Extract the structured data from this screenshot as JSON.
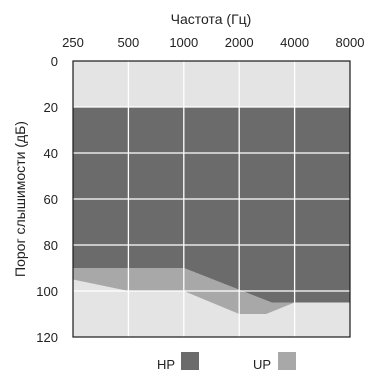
{
  "chart_data": {
    "type": "area",
    "title": "",
    "xlabel": "Частота (Гц)",
    "ylabel": "Порог слышимости (дБ)",
    "x_axis_position": "top",
    "y_inverted": true,
    "x_ticks": [
      "250",
      "500",
      "1000",
      "2000",
      "4000",
      "8000"
    ],
    "y_ticks": [
      "0",
      "20",
      "40",
      "60",
      "80",
      "100",
      "120"
    ],
    "ylim": [
      0,
      120
    ],
    "grid": true,
    "legend_position": "bottom",
    "series": [
      {
        "name": "HP",
        "color": "#6b6b6b",
        "upper": [
          [
            250,
            20
          ],
          [
            8000,
            20
          ]
        ],
        "lower": [
          [
            250,
            90
          ],
          [
            1000,
            90
          ],
          [
            3000,
            105
          ],
          [
            8000,
            105
          ]
        ]
      },
      {
        "name": "UP",
        "color": "#a8a8a8",
        "upper": [
          [
            250,
            90
          ],
          [
            1000,
            90
          ],
          [
            3000,
            105
          ],
          [
            8000,
            105
          ]
        ],
        "lower": [
          [
            250,
            95
          ],
          [
            500,
            100
          ],
          [
            1000,
            100
          ],
          [
            2000,
            110
          ],
          [
            2800,
            110
          ],
          [
            4000,
            105
          ],
          [
            8000,
            105
          ]
        ]
      }
    ]
  }
}
